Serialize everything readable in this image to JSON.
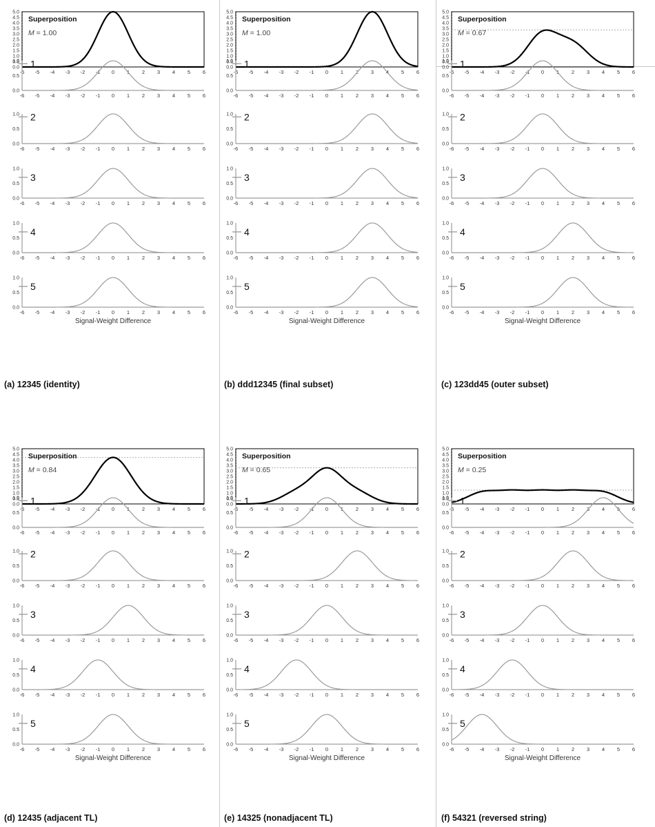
{
  "chart_data": [
    {
      "id": "a",
      "type": "line",
      "caption": "(a) 12345 (identity)",
      "xlabel": "Signal-Weight Difference",
      "x_ticks": [
        "-6",
        "-5",
        "-4",
        "-3",
        "-2",
        "-1",
        "0",
        "1",
        "2",
        "3",
        "4",
        "5",
        "6"
      ],
      "xlim": [
        -6,
        6
      ],
      "superposition": {
        "title": "Superposition",
        "m_symbol": "M",
        "m_value": "= 1.00",
        "ylim": [
          0,
          5
        ],
        "y_ticks": [
          "0.0",
          "0.5",
          "1.0",
          "1.5",
          "2.0",
          "2.5",
          "3.0",
          "3.5",
          "4.0",
          "4.5",
          "5.0"
        ],
        "peak": 5.0,
        "show_max_line": false
      },
      "series": [
        {
          "name": "1",
          "mean": 0
        },
        {
          "name": "2",
          "mean": 0
        },
        {
          "name": "3",
          "mean": 0
        },
        {
          "name": "4",
          "mean": 0
        },
        {
          "name": "5",
          "mean": 0
        }
      ],
      "component_y_ticks": [
        "0.0",
        "0.5",
        "1.0"
      ]
    },
    {
      "id": "b",
      "type": "line",
      "caption": "(b) ddd12345 (final subset)",
      "xlabel": "Signal-Weight Difference",
      "x_ticks": [
        "-6",
        "-5",
        "-4",
        "-3",
        "-2",
        "-1",
        "0",
        "1",
        "2",
        "3",
        "4",
        "5",
        "6"
      ],
      "xlim": [
        -6,
        6
      ],
      "superposition": {
        "title": "Superposition",
        "m_symbol": "M",
        "m_value": "= 1.00",
        "ylim": [
          0,
          5
        ],
        "y_ticks": [
          "0.0",
          "0.5",
          "1.0",
          "1.5",
          "2.0",
          "2.5",
          "3.0",
          "3.5",
          "4.0",
          "4.5",
          "5.0"
        ],
        "peak": 5.0,
        "show_max_line": false
      },
      "series": [
        {
          "name": "1",
          "mean": 3
        },
        {
          "name": "2",
          "mean": 3
        },
        {
          "name": "3",
          "mean": 3
        },
        {
          "name": "4",
          "mean": 3
        },
        {
          "name": "5",
          "mean": 3
        }
      ],
      "component_y_ticks": [
        "0.0",
        "0.5",
        "1.0"
      ]
    },
    {
      "id": "c",
      "type": "line",
      "caption": "(c) 123dd45 (outer subset)",
      "xlabel": "Signal-Weight Difference",
      "x_ticks": [
        "-6",
        "-5",
        "-4",
        "-3",
        "-2",
        "-1",
        "0",
        "1",
        "2",
        "3",
        "4",
        "5",
        "6"
      ],
      "xlim": [
        -6,
        6
      ],
      "superposition": {
        "title": "Superposition",
        "m_symbol": "M",
        "m_value": "= 0.67",
        "ylim": [
          0,
          5
        ],
        "y_ticks": [
          "0.0",
          "0.5",
          "1.0",
          "1.5",
          "2.0",
          "2.5",
          "3.0",
          "3.5",
          "4.0",
          "4.5",
          "5.0"
        ],
        "peak": 3.36,
        "show_max_line": true
      },
      "series": [
        {
          "name": "1",
          "mean": 0
        },
        {
          "name": "2",
          "mean": 0
        },
        {
          "name": "3",
          "mean": 0
        },
        {
          "name": "4",
          "mean": 2
        },
        {
          "name": "5",
          "mean": 2
        }
      ],
      "component_y_ticks": [
        "0.0",
        "0.5",
        "1.0"
      ]
    },
    {
      "id": "d",
      "type": "line",
      "caption": "(d) 12435 (adjacent TL)",
      "xlabel": "Signal-Weight Difference",
      "x_ticks": [
        "-6",
        "-5",
        "-4",
        "-3",
        "-2",
        "-1",
        "0",
        "1",
        "2",
        "3",
        "4",
        "5",
        "6"
      ],
      "xlim": [
        -6,
        6
      ],
      "superposition": {
        "title": "Superposition",
        "m_symbol": "M",
        "m_value": "= 0.84",
        "ylim": [
          0,
          5
        ],
        "y_ticks": [
          "0.0",
          "0.5",
          "1.0",
          "1.5",
          "2.0",
          "2.5",
          "3.0",
          "3.5",
          "4.0",
          "4.5",
          "5.0"
        ],
        "peak": 4.2,
        "show_max_line": true
      },
      "series": [
        {
          "name": "1",
          "mean": 0
        },
        {
          "name": "2",
          "mean": 0
        },
        {
          "name": "3",
          "mean": 1
        },
        {
          "name": "4",
          "mean": -1
        },
        {
          "name": "5",
          "mean": 0
        }
      ],
      "component_y_ticks": [
        "0.0",
        "0.5",
        "1.0"
      ]
    },
    {
      "id": "e",
      "type": "line",
      "caption": "(e) 14325 (nonadjacent TL)",
      "xlabel": "Signal-Weight Difference",
      "x_ticks": [
        "-6",
        "-5",
        "-4",
        "-3",
        "-2",
        "-1",
        "0",
        "1",
        "2",
        "3",
        "4",
        "5",
        "6"
      ],
      "xlim": [
        -6,
        6
      ],
      "superposition": {
        "title": "Superposition",
        "m_symbol": "M",
        "m_value": "= 0.65",
        "ylim": [
          0,
          5
        ],
        "y_ticks": [
          "0.0",
          "0.5",
          "1.0",
          "1.5",
          "2.0",
          "2.5",
          "3.0",
          "3.5",
          "4.0",
          "4.5",
          "5.0"
        ],
        "peak": 3.27,
        "show_max_line": true
      },
      "series": [
        {
          "name": "1",
          "mean": 0
        },
        {
          "name": "2",
          "mean": 2
        },
        {
          "name": "3",
          "mean": 0
        },
        {
          "name": "4",
          "mean": -2
        },
        {
          "name": "5",
          "mean": 0
        }
      ],
      "component_y_ticks": [
        "0.0",
        "0.5",
        "1.0"
      ]
    },
    {
      "id": "f",
      "type": "line",
      "caption": "(f) 54321 (reversed string)",
      "xlabel": "Signal-Weight Difference",
      "x_ticks": [
        "-6",
        "-5",
        "-4",
        "-3",
        "-2",
        "-1",
        "0",
        "1",
        "2",
        "3",
        "4",
        "5",
        "6"
      ],
      "xlim": [
        -6,
        6
      ],
      "superposition": {
        "title": "Superposition",
        "m_symbol": "M",
        "m_value": "= 0.25",
        "ylim": [
          0,
          5
        ],
        "y_ticks": [
          "0.0",
          "0.5",
          "1.0",
          "1.5",
          "2.0",
          "2.5",
          "3.0",
          "3.5",
          "4.0",
          "4.5",
          "5.0"
        ],
        "peak": 1.25,
        "show_max_line": true
      },
      "series": [
        {
          "name": "1",
          "mean": 4
        },
        {
          "name": "2",
          "mean": 2
        },
        {
          "name": "3",
          "mean": 0
        },
        {
          "name": "4",
          "mean": -2
        },
        {
          "name": "5",
          "mean": -4
        }
      ],
      "component_y_ticks": [
        "0.0",
        "0.5",
        "1.0"
      ]
    }
  ]
}
